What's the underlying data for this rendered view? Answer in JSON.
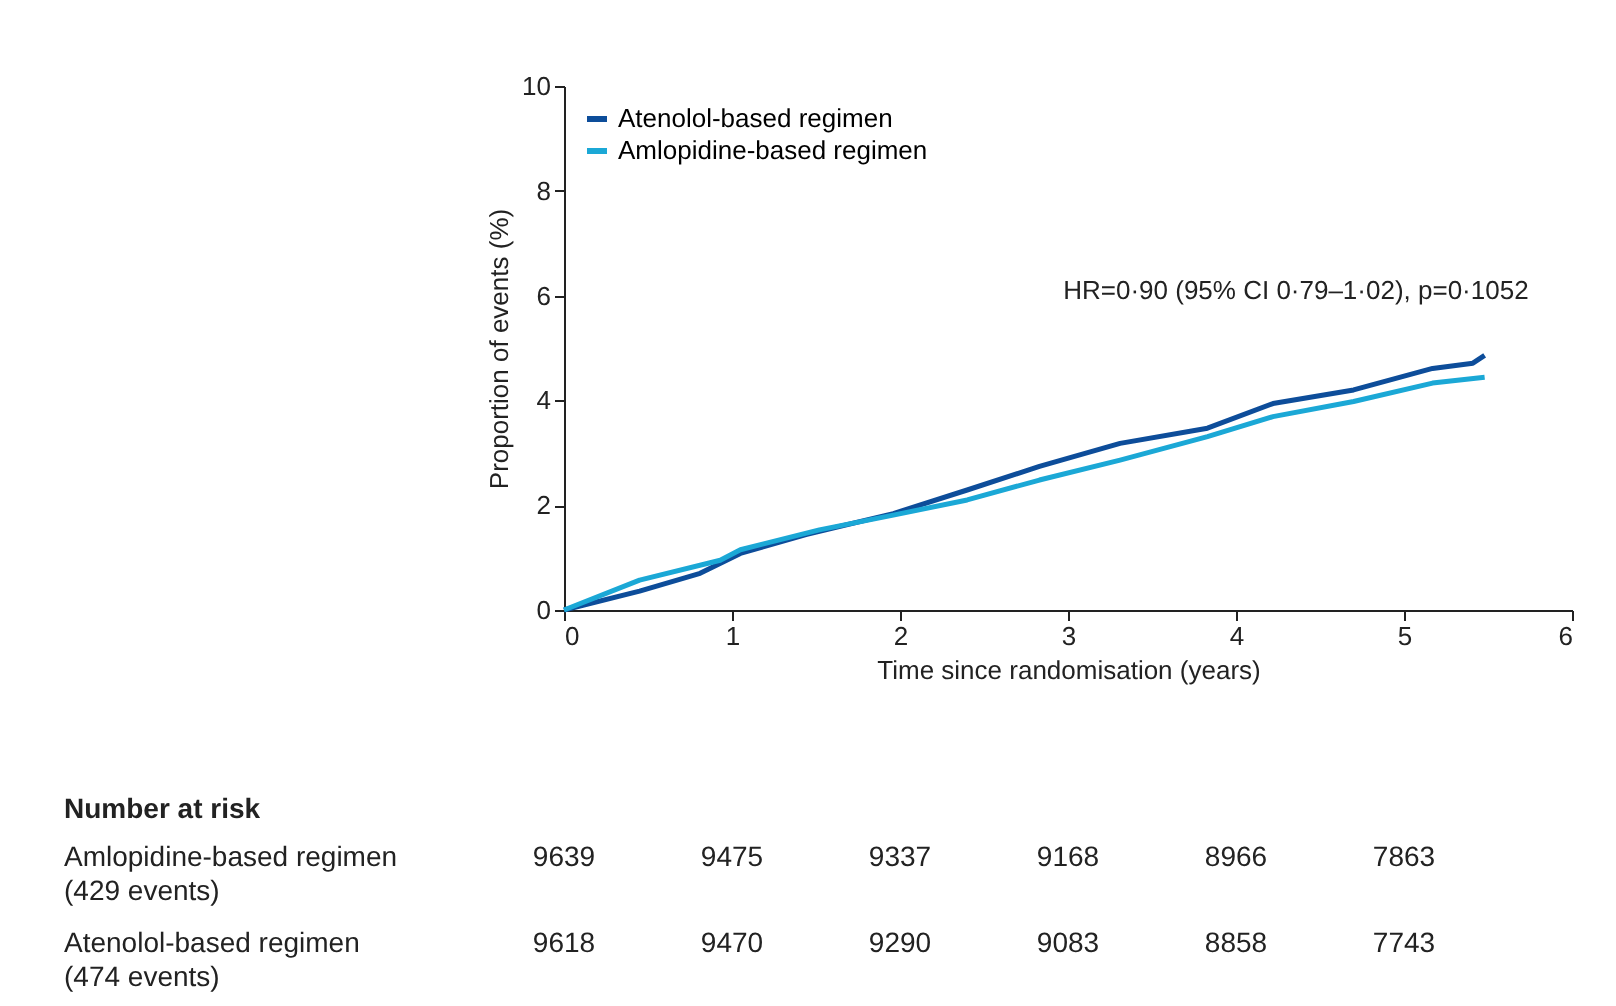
{
  "chart_data": {
    "type": "line",
    "xlabel": "Time since randomisation (years)",
    "ylabel": "Proportion of events (%)",
    "xlim": [
      0,
      6
    ],
    "xticks": [
      0,
      1,
      2,
      3,
      4,
      5,
      6
    ],
    "ylim": [
      0,
      10
    ],
    "yticks": [
      0,
      2,
      4,
      6,
      8,
      10
    ],
    "grid": false,
    "legend": "top left",
    "marker": "none",
    "line_style": "solid",
    "series": [
      {
        "name": "Atenolol-based regimen",
        "color": "#0d4d9a",
        "x": [
          0,
          0.45,
          0.81,
          1.05,
          1.44,
          1.96,
          2.4,
          2.83,
          3.31,
          3.83,
          4.22,
          4.7,
          5.17,
          5.41,
          5.48
        ],
        "values": [
          0,
          0.36,
          0.7,
          1.08,
          1.44,
          1.84,
          2.29,
          2.74,
          3.18,
          3.47,
          3.94,
          4.2,
          4.61,
          4.71,
          4.86
        ]
      },
      {
        "name": "Amlopidine-based regimen",
        "color": "#1ba8d6",
        "x": [
          0,
          0.45,
          0.93,
          1.05,
          1.52,
          1.96,
          2.4,
          2.83,
          3.31,
          3.83,
          4.22,
          4.7,
          5.17,
          5.48
        ],
        "values": [
          0,
          0.57,
          0.95,
          1.15,
          1.53,
          1.81,
          2.1,
          2.48,
          2.86,
          3.31,
          3.69,
          3.98,
          4.33,
          4.44
        ]
      }
    ],
    "annotations": [
      "HR=0·90 (95% CI 0·79–1·02), p=0·1052",
      "Number at risk",
      "Amlopidine-based regimen\n(429  events)",
      "9639",
      "9475",
      "9337",
      "9168",
      "8966",
      "7863",
      "Atenolol-based regimen\n(474 events)",
      "9618",
      "9470",
      "9290",
      "9083",
      "8858",
      "7743"
    ]
  }
}
